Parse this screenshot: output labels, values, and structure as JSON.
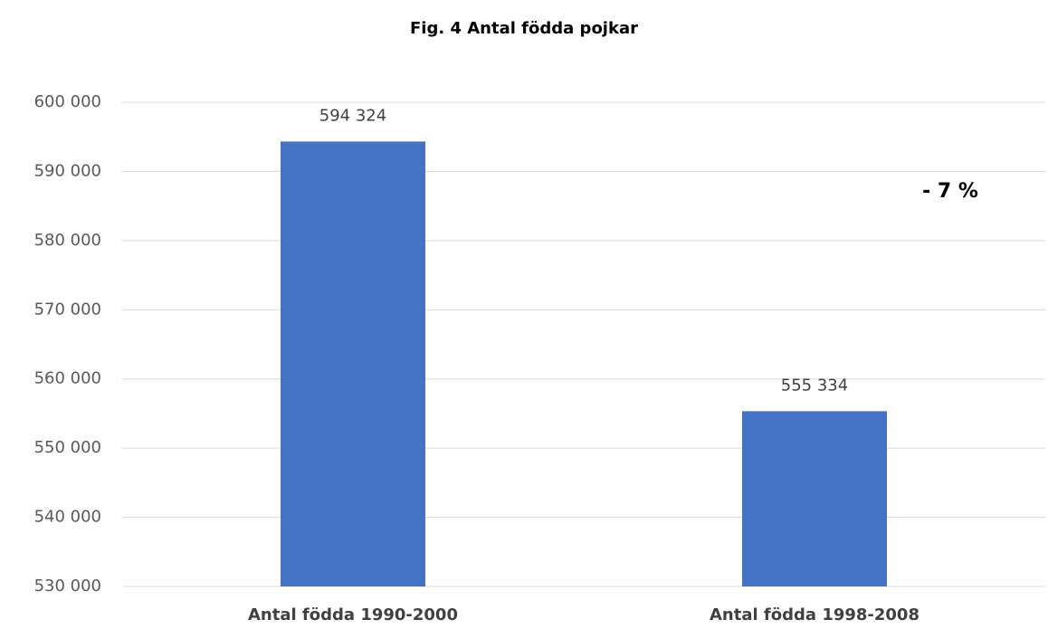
{
  "chart_data": {
    "type": "bar",
    "title": "Fig. 4 Antal födda pojkar",
    "categories": [
      "Antal födda 1990-2000",
      "Antal födda 1998-2008"
    ],
    "values": [
      594324,
      555334
    ],
    "value_labels": [
      "594 324",
      "555 334"
    ],
    "color": "#4472c4",
    "ylim": [
      530000,
      600000
    ],
    "yticks": [
      {
        "value": 530000,
        "label": "530 000"
      },
      {
        "value": 540000,
        "label": "540 000"
      },
      {
        "value": 550000,
        "label": "550 000"
      },
      {
        "value": 560000,
        "label": "560 000"
      },
      {
        "value": 570000,
        "label": "570 000"
      },
      {
        "value": 580000,
        "label": "580 000"
      },
      {
        "value": 590000,
        "label": "590 000"
      },
      {
        "value": 600000,
        "label": "600 000"
      }
    ],
    "grid": true,
    "annotation": "- 7 %"
  }
}
